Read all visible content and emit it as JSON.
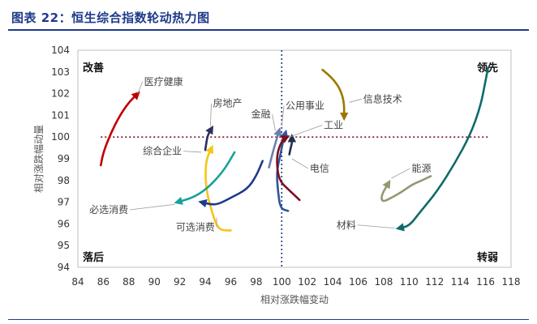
{
  "title": "图表 22：恒生综合指数轮动热力图",
  "chart_data": {
    "type": "line",
    "title": "",
    "xlabel": "相对涨跌幅变动",
    "ylabel": "相对涨跌幅动量",
    "xlim": [
      84,
      118
    ],
    "ylim": [
      94,
      104
    ],
    "xticks": [
      84,
      86,
      88,
      90,
      92,
      94,
      96,
      98,
      100,
      102,
      104,
      106,
      108,
      110,
      112,
      114,
      116,
      118
    ],
    "yticks": [
      94,
      95,
      96,
      97,
      98,
      99,
      100,
      101,
      102,
      103,
      104
    ],
    "reference_lines": {
      "x": 100,
      "y": 100
    },
    "quadrants": {
      "top_left": "改善",
      "top_right": "领先",
      "bottom_left": "落后",
      "bottom_right": "转弱"
    },
    "series": [
      {
        "name": "医疗健康",
        "color": "#c00000",
        "points": [
          [
            85.8,
            98.7
          ],
          [
            86.0,
            99.3
          ],
          [
            86.6,
            100.2
          ],
          [
            87.3,
            101.0
          ],
          [
            88.0,
            101.6
          ],
          [
            88.7,
            102.0
          ]
        ]
      },
      {
        "name": "房地产",
        "color": "#2e2e5e",
        "points": [
          [
            94.0,
            99.4
          ],
          [
            94.1,
            99.8
          ],
          [
            94.2,
            100.1
          ],
          [
            94.5,
            100.4
          ]
        ]
      },
      {
        "name": "综合企业",
        "color": "#f5c518",
        "points": [
          [
            96.0,
            95.7
          ],
          [
            95.3,
            95.7
          ],
          [
            94.9,
            95.9
          ],
          [
            94.5,
            96.6
          ],
          [
            94.1,
            97.5
          ],
          [
            94.0,
            98.3
          ],
          [
            94.1,
            99.0
          ],
          [
            94.5,
            99.5
          ]
        ]
      },
      {
        "name": "必选消费",
        "color": "#16a39a",
        "points": [
          [
            96.3,
            99.3
          ],
          [
            95.4,
            98.4
          ],
          [
            94.1,
            97.6
          ],
          [
            93.0,
            97.2
          ],
          [
            91.8,
            97.0
          ]
        ]
      },
      {
        "name": "可选消费",
        "color": "#1f3a8a",
        "points": [
          [
            98.5,
            98.9
          ],
          [
            98.0,
            98.2
          ],
          [
            97.3,
            97.6
          ],
          [
            96.0,
            97.2
          ],
          [
            95.0,
            96.9
          ],
          [
            94.4,
            96.9
          ],
          [
            93.7,
            97.0
          ]
        ]
      },
      {
        "name": "金融",
        "color": "#6b7fb0",
        "points": [
          [
            99.0,
            98.6
          ],
          [
            99.3,
            99.3
          ],
          [
            99.6,
            99.9
          ],
          [
            99.8,
            100.3
          ]
        ]
      },
      {
        "name": "公用事业",
        "color": "#2f5597",
        "points": [
          [
            100.5,
            96.6
          ],
          [
            99.9,
            96.7
          ],
          [
            99.7,
            97.5
          ],
          [
            99.6,
            98.4
          ],
          [
            99.9,
            99.2
          ],
          [
            100.1,
            99.8
          ],
          [
            100.3,
            100.2
          ]
        ]
      },
      {
        "name": "工业",
        "color": "#7b1020",
        "points": [
          [
            101.4,
            97.1
          ],
          [
            100.5,
            97.6
          ],
          [
            99.8,
            98.0
          ],
          [
            99.6,
            98.8
          ],
          [
            99.7,
            99.4
          ],
          [
            100.1,
            99.9
          ],
          [
            100.4,
            100.0
          ]
        ]
      },
      {
        "name": "电信",
        "color": "#1f2f4f",
        "points": [
          [
            100.6,
            99.2
          ],
          [
            100.7,
            99.5
          ],
          [
            100.8,
            99.7
          ],
          [
            100.8,
            100.0
          ]
        ]
      },
      {
        "name": "信息技术",
        "color": "#9a7800",
        "points": [
          [
            103.2,
            103.1
          ],
          [
            104.0,
            102.7
          ],
          [
            104.6,
            102.2
          ],
          [
            104.9,
            101.6
          ],
          [
            104.9,
            100.9
          ]
        ]
      },
      {
        "name": "能源",
        "color": "#8f9a70",
        "points": [
          [
            111.7,
            98.2
          ],
          [
            111.0,
            98.0
          ],
          [
            110.2,
            97.8
          ],
          [
            109.5,
            97.5
          ],
          [
            108.6,
            97.2
          ],
          [
            107.9,
            97.0
          ],
          [
            107.8,
            97.3
          ],
          [
            108.4,
            97.9
          ]
        ]
      },
      {
        "name": "材料",
        "color": "#0f6a6a",
        "points": [
          [
            116.2,
            103.2
          ],
          [
            116.0,
            102.6
          ],
          [
            115.6,
            101.4
          ],
          [
            114.8,
            100.1
          ],
          [
            113.6,
            98.8
          ],
          [
            112.2,
            97.5
          ],
          [
            110.8,
            96.5
          ],
          [
            110.0,
            95.9
          ],
          [
            109.2,
            95.8
          ]
        ]
      }
    ],
    "series_labels": [
      {
        "name": "医疗健康",
        "x": 89.2,
        "y": 102.4,
        "anchor_x": 88.7,
        "anchor_y": 102.0
      },
      {
        "name": "房地产",
        "x": 94.6,
        "y": 101.4,
        "anchor_x": 94.4,
        "anchor_y": 100.5
      },
      {
        "name": "金融",
        "x": 97.6,
        "y": 100.9,
        "anchor_x": 99.5,
        "anchor_y": 100.3
      },
      {
        "name": "公用事业",
        "x": 100.3,
        "y": 101.3,
        "anchor_x": 100.0,
        "anchor_y": 100.5
      },
      {
        "name": "工业",
        "x": 103.3,
        "y": 100.4,
        "anchor_x": 100.6,
        "anchor_y": 100.0
      },
      {
        "name": "信息技术",
        "x": 106.4,
        "y": 101.6,
        "anchor_x": 105.3,
        "anchor_y": 101.6
      },
      {
        "name": "综合企业",
        "x": 89.1,
        "y": 99.2,
        "anchor_x": 93.7,
        "anchor_y": 99.3
      },
      {
        "name": "必选消费",
        "x": 84.9,
        "y": 96.5,
        "anchor_x": 91.6,
        "anchor_y": 96.9
      },
      {
        "name": "可选消费",
        "x": 91.7,
        "y": 95.7,
        "anchor_x": 94.9,
        "anchor_y": 96.3
      },
      {
        "name": "电信",
        "x": 102.2,
        "y": 98.4,
        "anchor_x": 100.8,
        "anchor_y": 99.0
      },
      {
        "name": "能源",
        "x": 110.2,
        "y": 98.4,
        "anchor_x": 108.6,
        "anchor_y": 98.1
      },
      {
        "name": "材料",
        "x": 104.3,
        "y": 95.8,
        "anchor_x": 108.9,
        "anchor_y": 95.8
      }
    ]
  }
}
